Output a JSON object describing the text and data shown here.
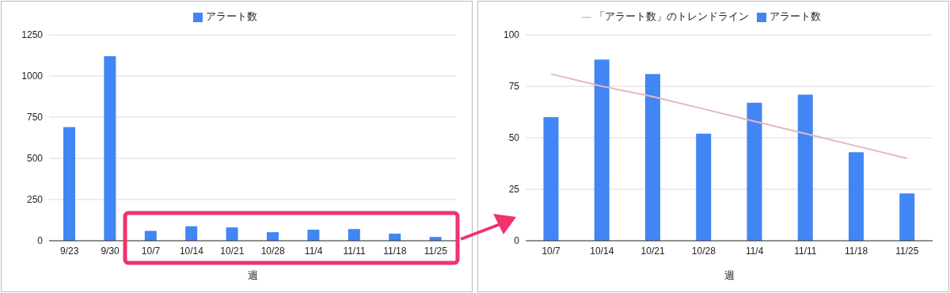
{
  "chart_data": [
    {
      "type": "bar",
      "xlabel": "週",
      "categories": [
        "9/23",
        "9/30",
        "10/7",
        "10/14",
        "10/21",
        "10/28",
        "11/4",
        "11/11",
        "11/18",
        "11/25"
      ],
      "series": [
        {
          "name": "アラート数",
          "color": "#4285f4",
          "values": [
            690,
            1120,
            60,
            88,
            81,
            52,
            67,
            71,
            43,
            23
          ]
        }
      ],
      "ylim": [
        0,
        1250
      ],
      "yticks": [
        0,
        250,
        500,
        750,
        1000,
        1250
      ],
      "grid": "y",
      "legend": "top"
    },
    {
      "type": "bar",
      "xlabel": "週",
      "categories": [
        "10/7",
        "10/14",
        "10/21",
        "10/28",
        "11/4",
        "11/11",
        "11/18",
        "11/25"
      ],
      "series": [
        {
          "name": "アラート数",
          "color": "#4285f4",
          "values": [
            60,
            88,
            81,
            52,
            67,
            71,
            43,
            23
          ]
        },
        {
          "name": "「アラート数」のトレンドライン",
          "type": "line",
          "color": "#e6b8b7",
          "values": [
            81,
            75,
            70,
            64,
            58,
            52,
            46,
            40
          ]
        }
      ],
      "ylim": [
        0,
        100
      ],
      "yticks": [
        0,
        25,
        50,
        75,
        100
      ],
      "grid": "y",
      "legend": "top"
    }
  ]
}
